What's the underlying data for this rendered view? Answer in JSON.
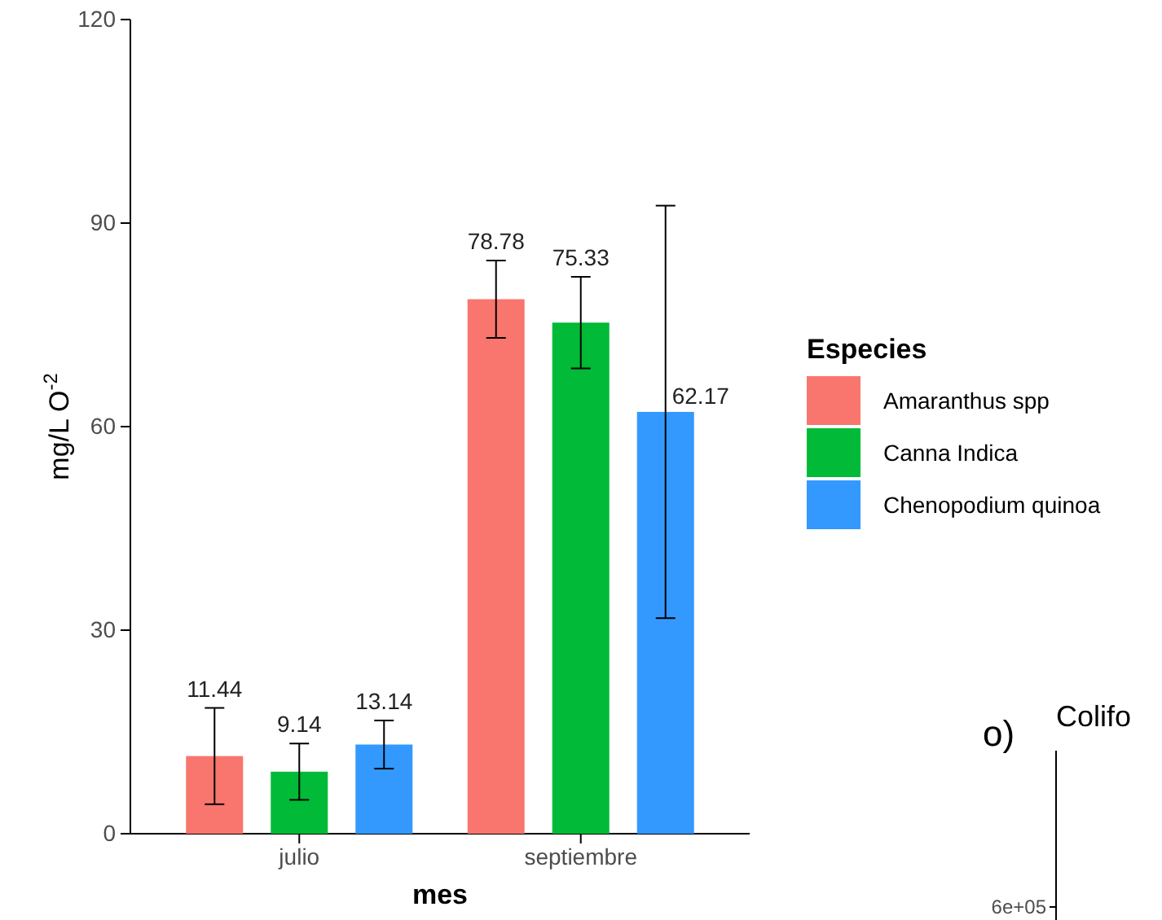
{
  "chart_data": {
    "type": "bar",
    "xlabel": "mes",
    "ylabel": "mg/L O$^{-2}$",
    "legend_title": "Especies",
    "categories": [
      "julio",
      "septiembre"
    ],
    "series": [
      {
        "name": "Amaranthus spp",
        "color": "#f8766d",
        "values": [
          11.44,
          78.78
        ],
        "errors": [
          7.1,
          5.7
        ]
      },
      {
        "name": "Canna Indica",
        "color": "#00ba38",
        "values": [
          9.14,
          75.33
        ],
        "errors": [
          4.15,
          6.75
        ]
      },
      {
        "name": "Chenopodium quinoa",
        "color": "#3399ff",
        "values": [
          13.14,
          62.17
        ],
        "errors": [
          3.55,
          30.4
        ]
      }
    ],
    "ylim": [
      0,
      120
    ],
    "yticks": [
      0,
      30,
      60,
      90,
      120
    ],
    "grid": false,
    "legend": "right",
    "data_labels": true,
    "annotations": [
      "o)",
      "Colifo",
      "6e+05"
    ]
  }
}
